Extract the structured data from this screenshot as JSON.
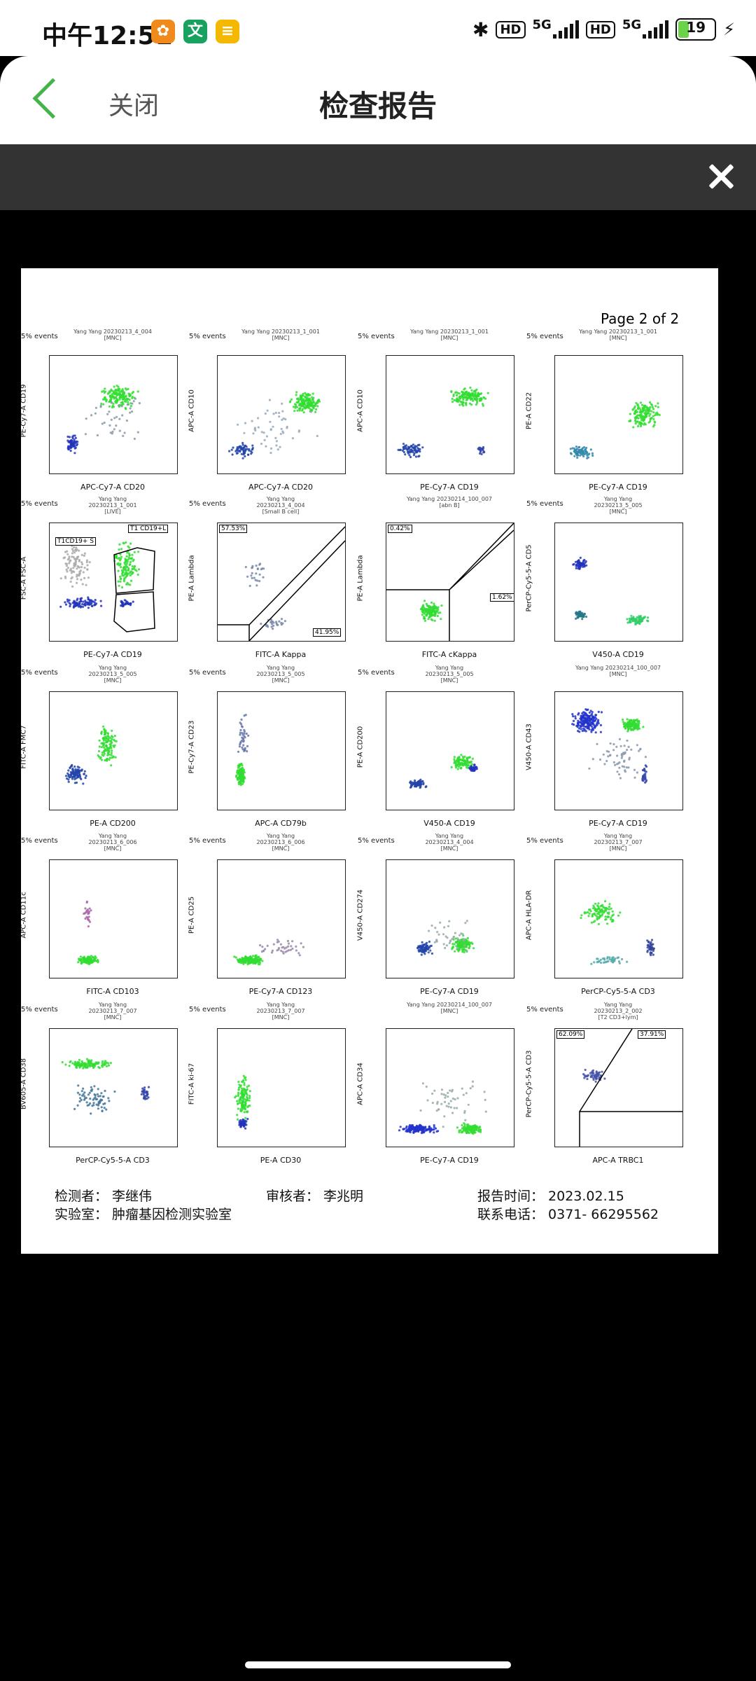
{
  "status": {
    "time": "中午12:51",
    "net1": "5G",
    "net2": "5G",
    "hd1": "HD",
    "hd2": "HD",
    "battery": "19"
  },
  "header": {
    "close_label": "关闭",
    "title": "检查报告"
  },
  "report": {
    "page": "Page 2 of 2",
    "plots": [
      {
        "events": "5% events",
        "title": "Yang Yang 20230213_4_004\n[MNC]",
        "x": "APC-Cy7-A CD20",
        "y": "PE-Cy7-A CD19"
      },
      {
        "events": "5% events",
        "title": "Yang Yang 20230213_1_001\n[MNC]",
        "x": "APC-Cy7-A CD20",
        "y": "APC-A CD10"
      },
      {
        "events": "5% events",
        "title": "Yang Yang 20230213_1_001\n[MNC]",
        "x": "PE-Cy7-A CD19",
        "y": "APC-A CD10"
      },
      {
        "events": "5% events",
        "title": "Yang Yang 20230213_1_001\n[MNC]",
        "x": "PE-Cy7-A CD19",
        "y": "PE-A CD22"
      },
      {
        "events": "5% events",
        "title": "Yang Yang\n20230213_1_001\n[LIVE]",
        "x": "PE-Cy7-A CD19",
        "y": "FSC-A FSC-A",
        "g1": "T1CD19+ S",
        "g2": "T1 CD19+L"
      },
      {
        "events": "5% events",
        "title": "Yang Yang\n20230213_4_004\n[Small B cell]",
        "x": "FITC-A Kappa",
        "y": "PE-A Lambda",
        "q1": "57.53%",
        "q2": "41.95%"
      },
      {
        "events": "",
        "title": "Yang Yang 20230214_100_007\n[abn B]",
        "x": "FITC-A cKappa",
        "y": "PE-A Lambda",
        "q1": "0.42%",
        "q2": "1.62%"
      },
      {
        "events": "5% events",
        "title": "Yang Yang\n20230213_5_005\n[MNC]",
        "x": "V450-A CD19",
        "y": "PerCP-Cy5-5-A CD5"
      },
      {
        "events": "5% events",
        "title": "Yang Yang\n20230213_5_005\n[MNC]",
        "x": "PE-A CD200",
        "y": "FITC-A FMC7"
      },
      {
        "events": "5% events",
        "title": "Yang Yang\n20230213_5_005\n[MNC]",
        "x": "APC-A CD79b",
        "y": "PE-Cy7-A CD23"
      },
      {
        "events": "5% events",
        "title": "Yang Yang\n20230213_5_005\n[MNC]",
        "x": "V450-A CD19",
        "y": "PE-A CD200"
      },
      {
        "events": "",
        "title": "Yang Yang 20230214_100_007\n[MNC]",
        "x": "PE-Cy7-A CD19",
        "y": "V450-A CD43"
      },
      {
        "events": "5% events",
        "title": "Yang Yang\n20230213_6_006\n[MNC]",
        "x": "FITC-A CD103",
        "y": "APC-A CD11c"
      },
      {
        "events": "5% events",
        "title": "Yang Yang\n20230213_6_006\n[MNC]",
        "x": "PE-Cy7-A CD123",
        "y": "PE-A CD25"
      },
      {
        "events": "5% events",
        "title": "Yang Yang\n20230213_4_004\n[MNC]",
        "x": "PE-Cy7-A CD19",
        "y": "V450-A CD274"
      },
      {
        "events": "5% events",
        "title": "Yang Yang\n20230213_7_007\n[MNC]",
        "x": "PerCP-Cy5-5-A CD3",
        "y": "APC-A HLA-DR"
      },
      {
        "events": "5% events",
        "title": "Yang Yang\n20230213_7_007\n[MNC]",
        "x": "PerCP-Cy5-5-A CD3",
        "y": "BV605-A CD38"
      },
      {
        "events": "5% events",
        "title": "Yang Yang\n20230213_7_007\n[MNC]",
        "x": "PE-A CD30",
        "y": "FITC-A ki-67"
      },
      {
        "events": "",
        "title": "Yang Yang 20230214_100_007\n[MNC]",
        "x": "PE-Cy7-A CD19",
        "y": "APC-A CD34"
      },
      {
        "events": "5% events",
        "title": "Yang Yang\n20230213_2_002\n[T2 CD3+lym]",
        "x": "APC-A TRBC1",
        "y": "PerCP-Cy5-5-A CD3",
        "q1": "62.09%",
        "q2": "37.91%"
      }
    ],
    "footer": {
      "inspector": "检测者： 李继伟",
      "lab": "实验室： 肿瘤基因检测实验室",
      "reviewer": "审核者： 李兆明",
      "report_time": "报告时间： 2023.02.15",
      "phone": "联系电话： 0371- 66295562"
    }
  }
}
